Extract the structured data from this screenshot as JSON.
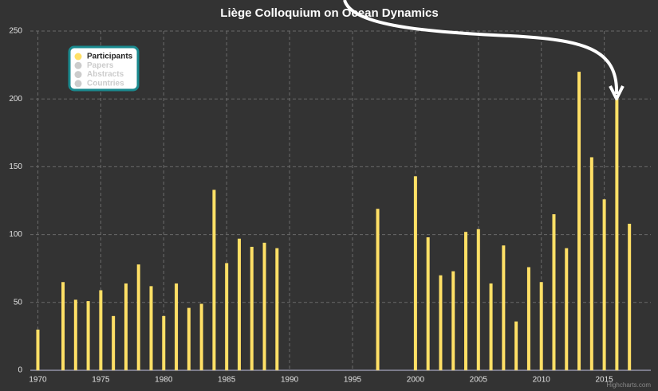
{
  "chart_data": {
    "type": "bar",
    "title": "Liège Colloquium on Ocean Dynamics",
    "x": [
      1970,
      1972,
      1973,
      1974,
      1975,
      1976,
      1977,
      1978,
      1979,
      1980,
      1981,
      1982,
      1983,
      1984,
      1985,
      1986,
      1987,
      1988,
      1989,
      1997,
      2000,
      2001,
      2002,
      2003,
      2004,
      2005,
      2006,
      2007,
      2008,
      2009,
      2010,
      2011,
      2012,
      2013,
      2014,
      2015,
      2016,
      2017
    ],
    "series": [
      {
        "name": "Participants",
        "color": "#ffe066",
        "values": [
          30,
          65,
          52,
          51,
          59,
          40,
          64,
          78,
          62,
          40,
          64,
          46,
          49,
          133,
          79,
          97,
          91,
          94,
          90,
          119,
          143,
          98,
          70,
          73,
          102,
          104,
          64,
          92,
          36,
          76,
          65,
          115,
          90,
          220,
          157,
          126,
          201,
          108
        ]
      },
      {
        "name": "Papers",
        "color": "#cccccc",
        "visible": false
      },
      {
        "name": "Abstracts",
        "color": "#cccccc",
        "visible": false
      },
      {
        "name": "Countries",
        "color": "#cccccc",
        "visible": false
      }
    ],
    "xlim": [
      1969.4,
      2018.7
    ],
    "xticks": [
      1970,
      1975,
      1980,
      1985,
      1990,
      1995,
      2000,
      2005,
      2010,
      2015
    ],
    "ylim": [
      0,
      250
    ],
    "yticks": [
      0,
      50,
      100,
      150,
      200,
      250
    ],
    "grid": true,
    "legend": "upper left",
    "credits": "Highcharts.com"
  }
}
